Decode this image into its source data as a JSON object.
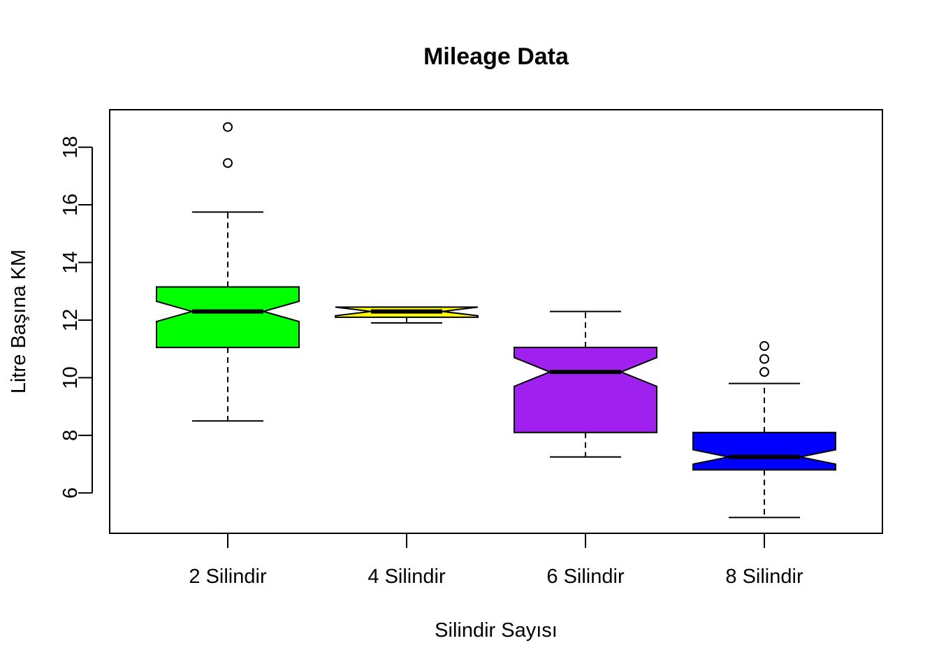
{
  "chart_data": {
    "type": "boxplot",
    "notched": true,
    "title": "Mileage Data",
    "xlabel": "Silindir Sayısı",
    "ylabel": "Litre Başına KM",
    "categories": [
      "2 Silindir",
      "4 Silindir",
      "6 Silindir",
      "8 Silindir"
    ],
    "ylim": [
      4.6,
      19.3
    ],
    "yticks": [
      6,
      8,
      10,
      12,
      14,
      16,
      18
    ],
    "ytick_labels": [
      "6",
      "8",
      "10",
      "12",
      "14",
      "16",
      "18"
    ],
    "grid": false,
    "legend": "none",
    "boxes": [
      {
        "category": "2 Silindir",
        "color": "#00FF00",
        "whisker_low": 8.5,
        "q1": 11.05,
        "median": 12.3,
        "q3": 13.15,
        "whisker_high": 15.75,
        "notch_low": 11.95,
        "notch_high": 12.65,
        "outliers": [
          17.45,
          18.7
        ]
      },
      {
        "category": "4 Silindir",
        "color": "#FFFF00",
        "whisker_low": 11.9,
        "q1": 12.1,
        "median": 12.3,
        "q3": 12.45,
        "whisker_high": 12.45,
        "notch_low": 12.15,
        "notch_high": 12.45,
        "outliers": []
      },
      {
        "category": "6 Silindir",
        "color": "#A020F0",
        "whisker_low": 7.25,
        "q1": 8.1,
        "median": 10.2,
        "q3": 11.05,
        "whisker_high": 12.3,
        "notch_low": 9.7,
        "notch_high": 10.7,
        "outliers": []
      },
      {
        "category": "8 Silindir",
        "color": "#0000FF",
        "whisker_low": 5.15,
        "q1": 6.8,
        "median": 7.25,
        "q3": 8.1,
        "whisker_high": 9.8,
        "notch_low": 7.0,
        "notch_high": 7.5,
        "outliers": [
          10.2,
          10.65,
          11.1
        ]
      }
    ]
  }
}
